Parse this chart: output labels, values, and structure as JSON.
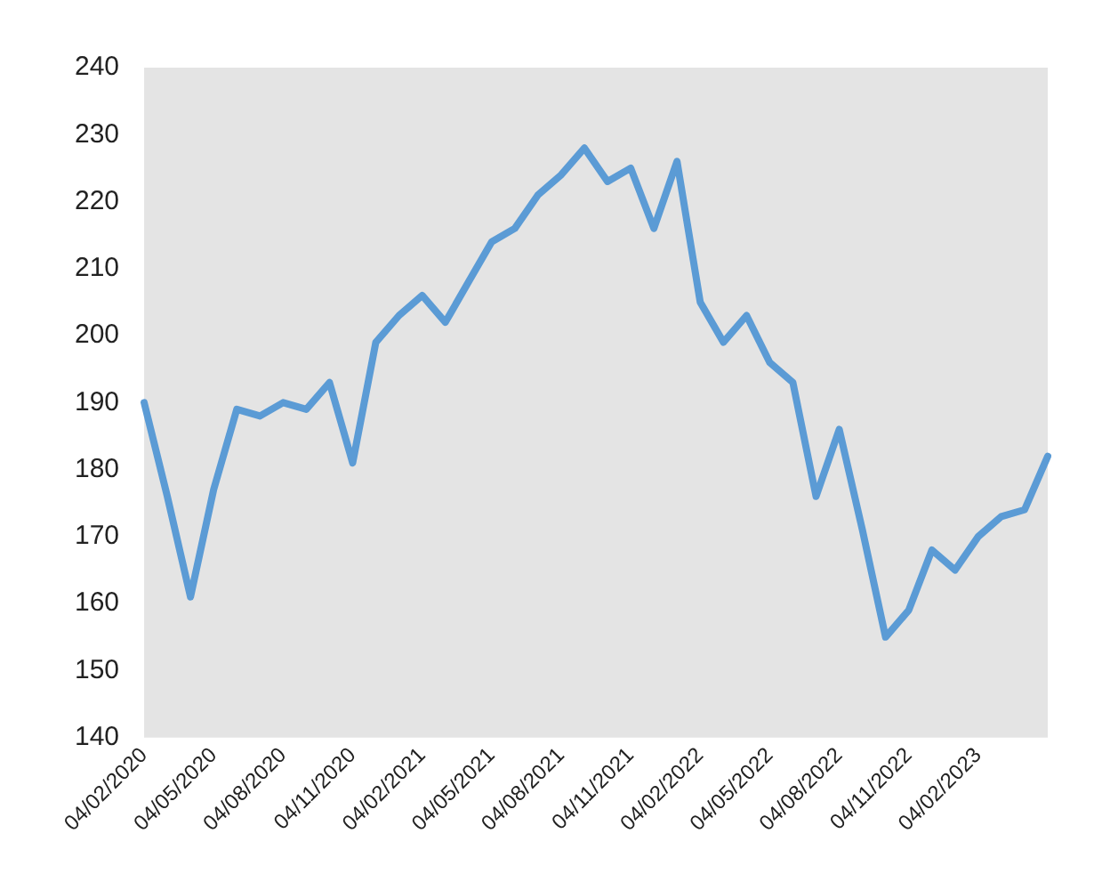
{
  "chart_data": {
    "type": "line",
    "categories": [
      "04/02/2020",
      null,
      null,
      "04/05/2020",
      null,
      null,
      "04/08/2020",
      null,
      null,
      "04/11/2020",
      null,
      null,
      "04/02/2021",
      null,
      null,
      "04/05/2021",
      null,
      null,
      "04/08/2021",
      null,
      null,
      "04/11/2021",
      null,
      null,
      "04/02/2022",
      null,
      null,
      "04/05/2022",
      null,
      null,
      "04/08/2022",
      null,
      null,
      "04/11/2022",
      null,
      null,
      "04/02/2023",
      null,
      null,
      null
    ],
    "series": [
      {
        "color": "#5b9bd5",
        "values": [
          190,
          176,
          161,
          177,
          189,
          188,
          190,
          189,
          193,
          181,
          199,
          203,
          206,
          202,
          208,
          214,
          216,
          221,
          224,
          228,
          223,
          225,
          216,
          226,
          205,
          199,
          203,
          196,
          193,
          176,
          186,
          171,
          155,
          159,
          168,
          165,
          170,
          173,
          174,
          182
        ]
      }
    ],
    "ylim": [
      140,
      240
    ],
    "yticks": [
      140,
      150,
      160,
      170,
      180,
      190,
      200,
      210,
      220,
      230,
      240
    ],
    "grid": false,
    "legend": false,
    "marker": "none",
    "line_style": "solid"
  }
}
